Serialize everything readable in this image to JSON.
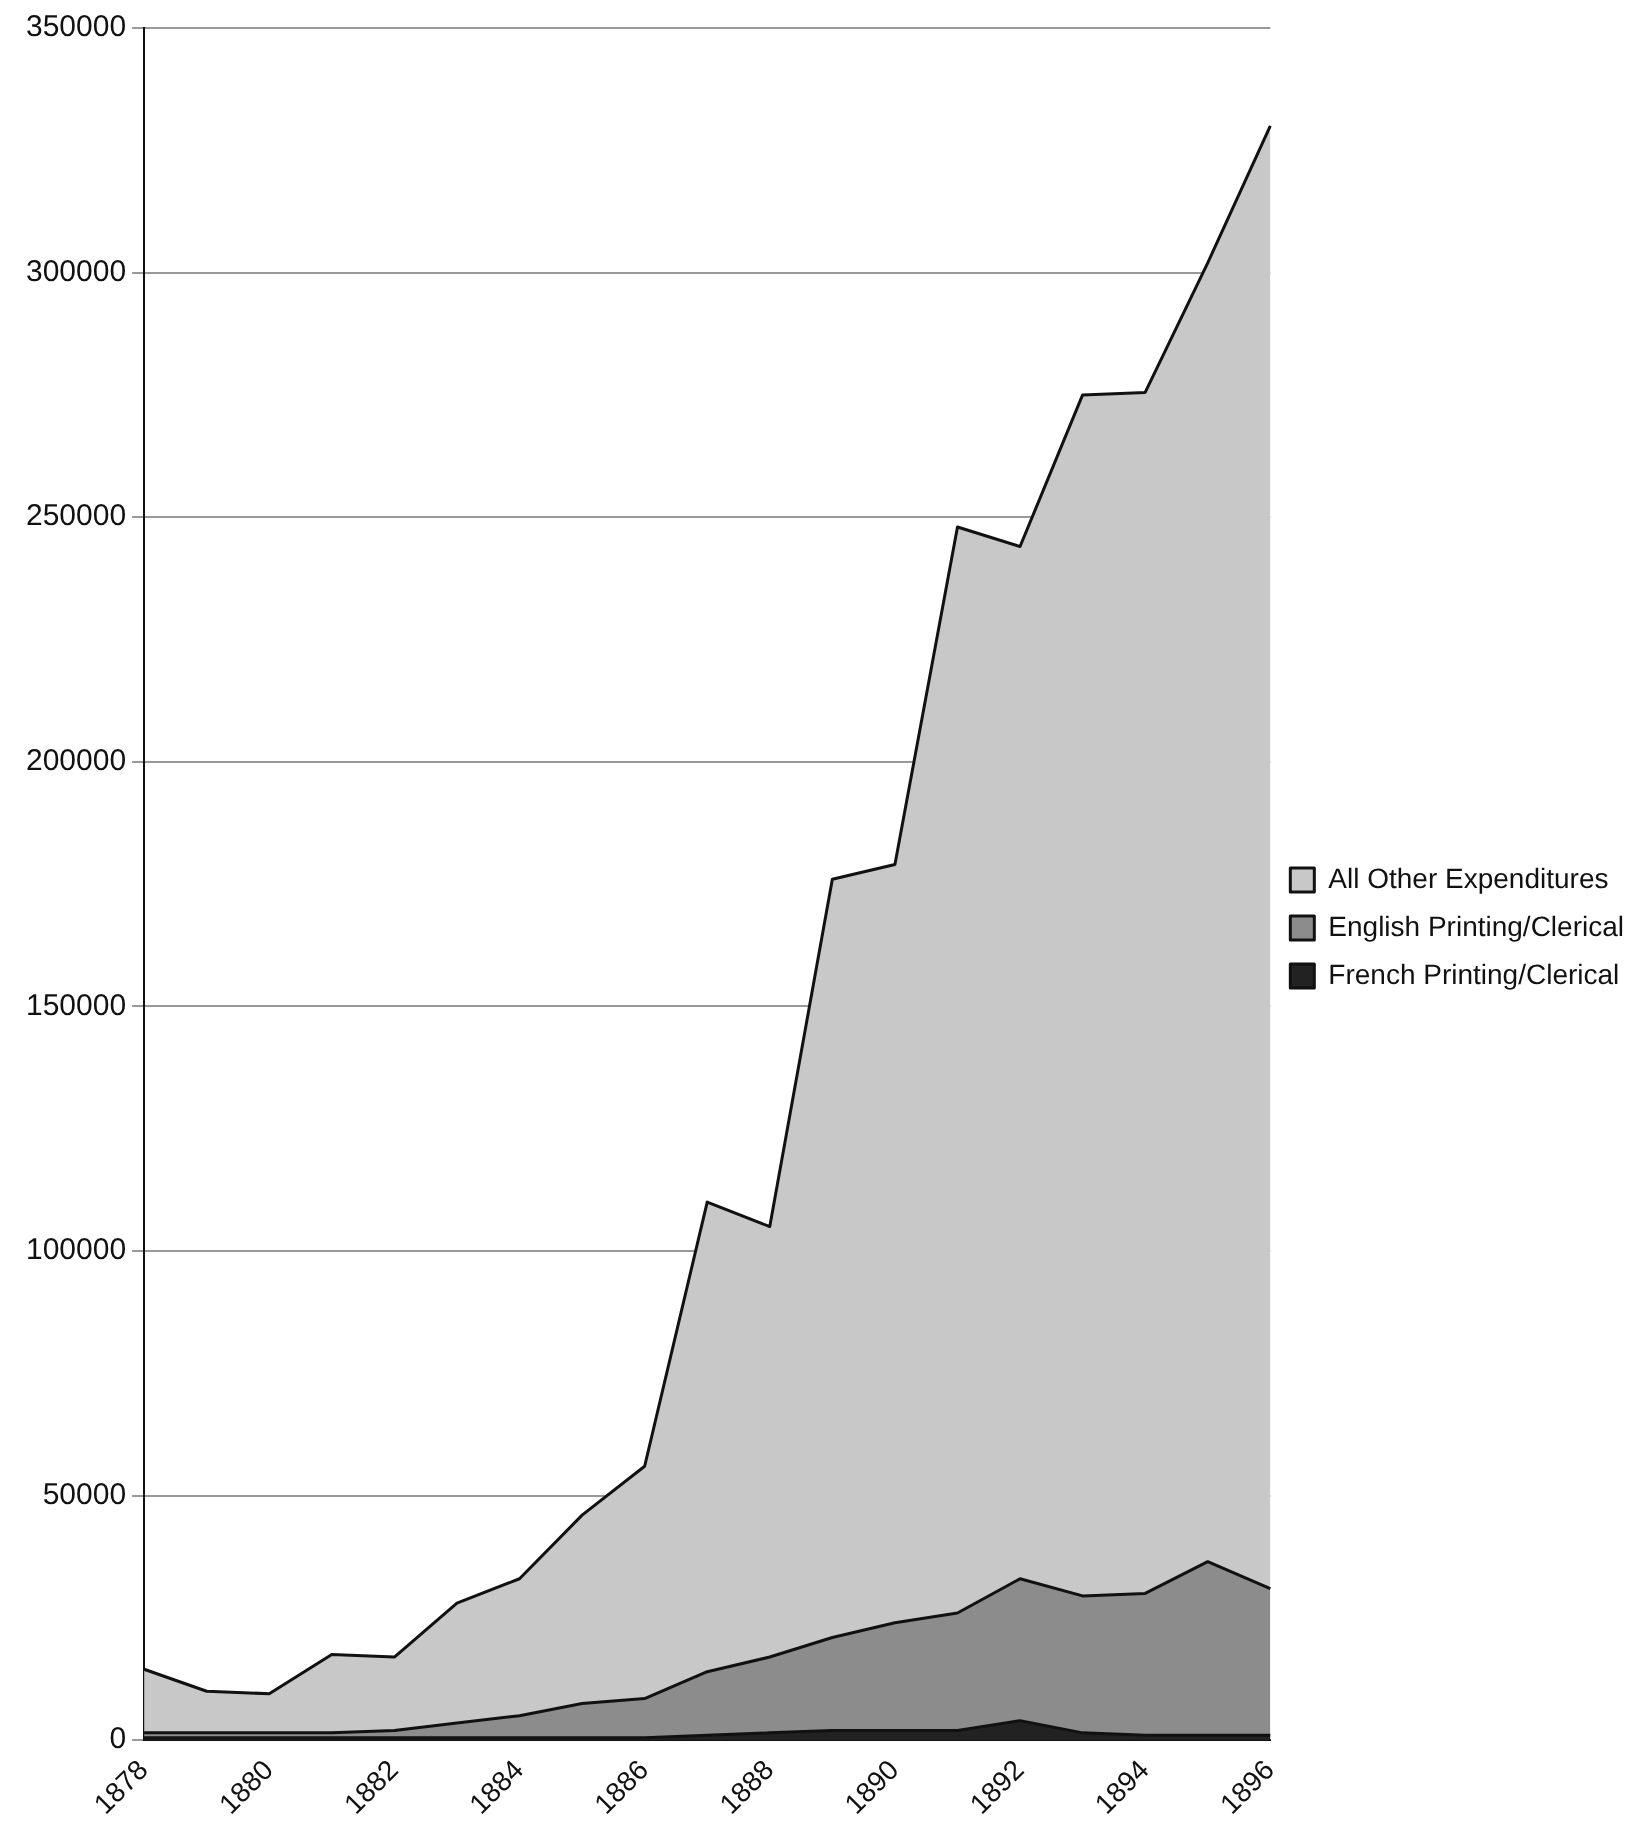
{
  "chart_data": {
    "type": "area",
    "stacked": true,
    "categories": [
      "1878",
      null,
      "1880",
      null,
      "1882",
      null,
      "1884",
      null,
      "1886",
      null,
      "1888",
      null,
      "1890",
      null,
      "1892",
      null,
      "1894",
      null,
      "1896"
    ],
    "series": [
      {
        "name": "French Printing/Clerical",
        "color": "#222222",
        "values": [
          500,
          500,
          500,
          500,
          500,
          500,
          500,
          500,
          500,
          1000,
          1500,
          2000,
          2000,
          2000,
          4000,
          1500,
          1000,
          1000,
          1000
        ]
      },
      {
        "name": "English Printing/Clerical",
        "color": "#8c8c8c",
        "values": [
          1000,
          1000,
          1000,
          1000,
          1500,
          3000,
          4500,
          7000,
          8000,
          13000,
          15500,
          19000,
          22000,
          24000,
          29000,
          28000,
          29000,
          35500,
          30000
        ]
      },
      {
        "name": "All Other Expenditures",
        "color": "#c8c8c8",
        "values": [
          13000,
          8500,
          8000,
          16000,
          15000,
          24500,
          28000,
          38500,
          47500,
          96000,
          88000,
          155000,
          155000,
          222000,
          211000,
          245500,
          245500,
          265500,
          299000
        ]
      }
    ],
    "ylim": [
      0,
      350000
    ],
    "yticks": [
      0,
      50000,
      100000,
      150000,
      200000,
      250000,
      300000,
      350000
    ],
    "grid": "y",
    "legend": "right"
  }
}
